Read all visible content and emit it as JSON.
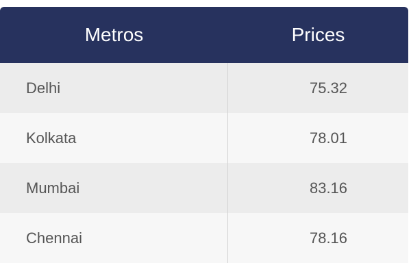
{
  "table": {
    "header": [
      "Metros",
      "Prices"
    ],
    "rows": [
      [
        "Delhi",
        "75.32"
      ],
      [
        "Kolkata",
        "78.01"
      ],
      [
        "Mumbai",
        "83.16"
      ],
      [
        "Chennai",
        "78.16"
      ]
    ]
  }
}
